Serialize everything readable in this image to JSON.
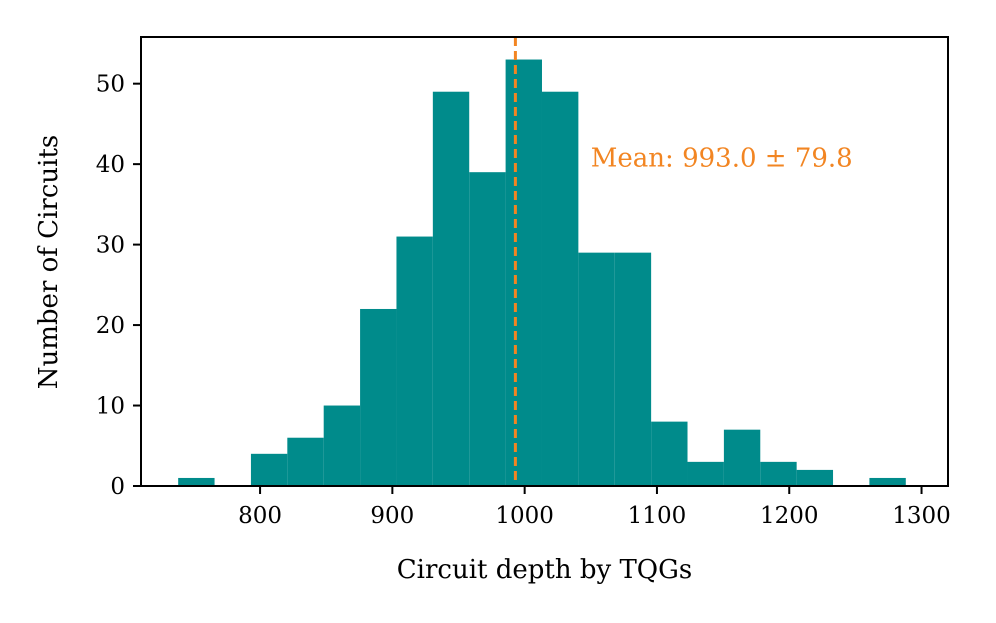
{
  "chart_data": {
    "type": "bar",
    "title": "",
    "xlabel": "Circuit depth by TQGs",
    "ylabel": "Number of Circuits",
    "xlim": [
      710,
      1320
    ],
    "ylim": [
      0,
      55.8
    ],
    "x_ticks": [
      800,
      900,
      1000,
      1100,
      1200,
      1300
    ],
    "y_ticks": [
      0,
      10,
      20,
      30,
      40,
      50
    ],
    "grid": false,
    "bar_color": "#008b8b",
    "bins": [
      {
        "start": 738.1,
        "end": 765.6,
        "count": 1
      },
      {
        "start": 765.6,
        "end": 793.1,
        "count": 0
      },
      {
        "start": 793.1,
        "end": 820.6,
        "count": 4
      },
      {
        "start": 820.6,
        "end": 848.1,
        "count": 6
      },
      {
        "start": 848.1,
        "end": 875.6,
        "count": 10
      },
      {
        "start": 875.6,
        "end": 903.1,
        "count": 22
      },
      {
        "start": 903.1,
        "end": 930.6,
        "count": 31
      },
      {
        "start": 930.6,
        "end": 958.1,
        "count": 49
      },
      {
        "start": 958.1,
        "end": 985.6,
        "count": 39
      },
      {
        "start": 985.6,
        "end": 1013.1,
        "count": 53
      },
      {
        "start": 1013.1,
        "end": 1040.6,
        "count": 49
      },
      {
        "start": 1040.6,
        "end": 1068.1,
        "count": 29
      },
      {
        "start": 1068.1,
        "end": 1095.6,
        "count": 29
      },
      {
        "start": 1095.6,
        "end": 1123.1,
        "count": 8
      },
      {
        "start": 1123.1,
        "end": 1150.6,
        "count": 3
      },
      {
        "start": 1150.6,
        "end": 1178.1,
        "count": 7
      },
      {
        "start": 1178.1,
        "end": 1205.6,
        "count": 3
      },
      {
        "start": 1205.6,
        "end": 1233.1,
        "count": 2
      },
      {
        "start": 1233.1,
        "end": 1260.6,
        "count": 0
      },
      {
        "start": 1260.6,
        "end": 1288.1,
        "count": 1
      }
    ],
    "mean_line": {
      "value": 993.0,
      "style": "dashed",
      "color": "#f28522"
    },
    "annotation": {
      "text": "Mean: 993.0 ± 79.8",
      "color": "#f28522",
      "x": 1050,
      "y": 40.8
    }
  }
}
